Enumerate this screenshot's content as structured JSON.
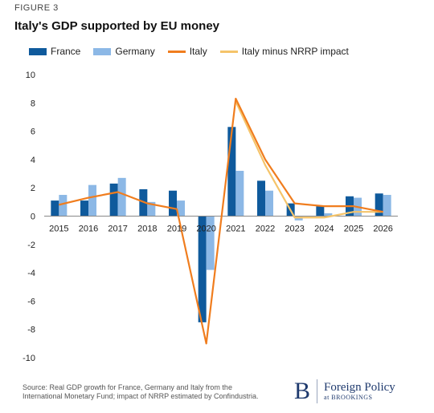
{
  "figure_label": "FIGURE 3",
  "colors": {
    "france": "#0f5a9c",
    "germany": "#8cb8e6",
    "italy": "#f07d1e",
    "italy_minus": "#f5c46a",
    "zero_line": "#888888",
    "axis_text": "#222222"
  },
  "chart_data": {
    "type": "bar",
    "title": "Italy's GDP supported by EU money",
    "xlabel": "",
    "ylabel": "",
    "categories": [
      "2015",
      "2016",
      "2017",
      "2018",
      "2019",
      "2020",
      "2021",
      "2022",
      "2023",
      "2024",
      "2025",
      "2026"
    ],
    "ylim": [
      -10,
      10
    ],
    "yticks": [
      "10",
      "8",
      "6",
      "4",
      "2",
      "0",
      "-2",
      "-4",
      "-6",
      "-8",
      "-10"
    ],
    "grid": false,
    "legend_position": "top-left",
    "series": [
      {
        "name": "France",
        "kind": "bar",
        "values": [
          1.1,
          1.1,
          2.3,
          1.9,
          1.8,
          -7.5,
          6.3,
          2.5,
          0.9,
          0.7,
          1.4,
          1.6
        ]
      },
      {
        "name": "Germany",
        "kind": "bar",
        "values": [
          1.5,
          2.2,
          2.7,
          1.0,
          1.1,
          -3.8,
          3.2,
          1.8,
          -0.3,
          0.2,
          1.3,
          1.5
        ]
      },
      {
        "name": "Italy",
        "kind": "line",
        "values": [
          0.8,
          1.3,
          1.7,
          0.9,
          0.5,
          -9.0,
          8.3,
          4.0,
          0.9,
          0.7,
          0.7,
          0.3
        ]
      },
      {
        "name": "Italy minus NRRP impact",
        "kind": "line",
        "values": [
          null,
          null,
          null,
          null,
          null,
          null,
          8.1,
          3.6,
          -0.1,
          -0.1,
          0.3,
          0.3
        ]
      }
    ]
  },
  "source_text": "Source: Real GDP growth for France, Germany and Italy from the International Monetary Fund; impact of NRRP estimated by Confindustria.",
  "logo": {
    "mark": "B",
    "name": "Foreign Policy",
    "sub": "at BROOKINGS"
  }
}
